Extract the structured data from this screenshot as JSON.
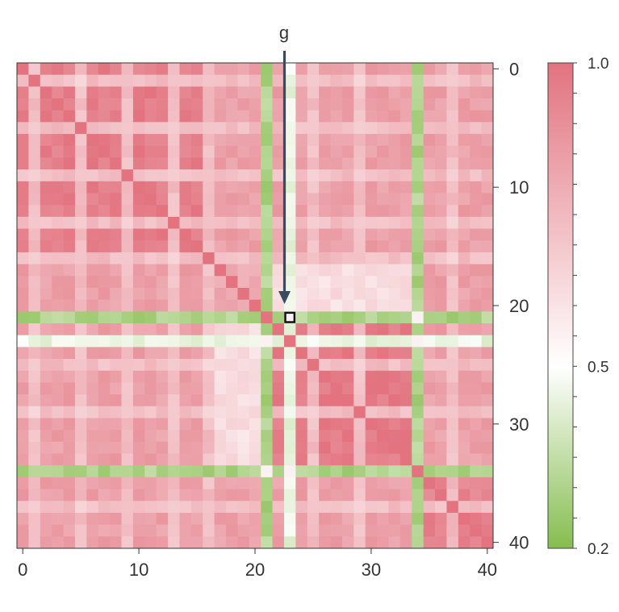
{
  "chart_data": {
    "type": "heatmap",
    "n": 41,
    "x_ticks": [
      0,
      10,
      20,
      30,
      40
    ],
    "y_ticks": [
      0,
      10,
      20,
      30,
      40
    ],
    "colorbar": {
      "min": 0.2,
      "max": 1.0,
      "labels": [
        {
          "value": 1.0,
          "text": "1.0"
        },
        {
          "value": 0.5,
          "text": "0.5"
        },
        {
          "value": 0.2,
          "text": "0.2"
        }
      ],
      "tick_values": [
        1.0,
        0.95,
        0.9,
        0.85,
        0.8,
        0.75,
        0.7,
        0.65,
        0.6,
        0.55,
        0.5,
        0.45,
        0.4,
        0.35,
        0.3,
        0.25,
        0.2
      ],
      "colors": {
        "low": "#86bd4f",
        "mid": "#ffffff",
        "high": "#e2737f"
      }
    },
    "highlight": {
      "row": 21,
      "col": 23,
      "label": "g"
    },
    "groups": [
      {
        "range": [
          0,
          16
        ],
        "value": 0.96
      },
      {
        "range": [
          17,
          20
        ],
        "value": 0.8
      },
      {
        "range": [
          22,
          33
        ],
        "value": 0.97
      },
      {
        "range": [
          35,
          40
        ],
        "value": 0.94
      }
    ],
    "special_lines": [
      {
        "index": 21,
        "value": 0.3
      },
      {
        "index": 34,
        "value": 0.3
      },
      {
        "index": 23,
        "value": 0.45
      }
    ],
    "light_lines": [
      1,
      5,
      9,
      13,
      16,
      25,
      29,
      37
    ],
    "light_value": 0.73,
    "between_group_value": 0.84,
    "group2_to_group3_value": 0.62,
    "cross_special_value": 0.55
  }
}
